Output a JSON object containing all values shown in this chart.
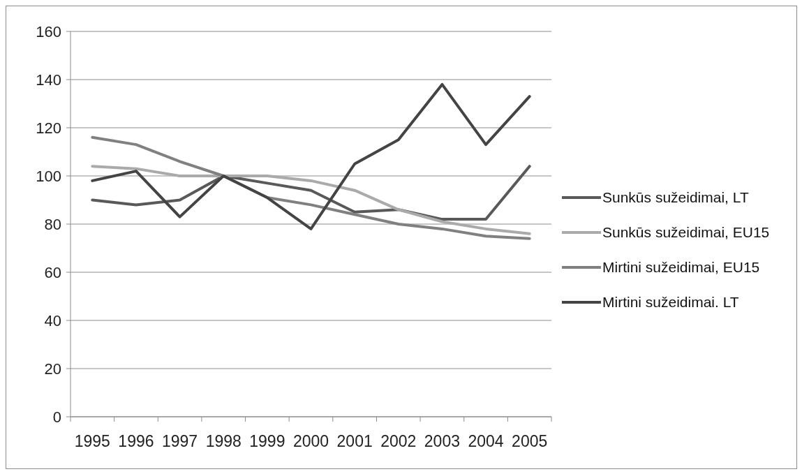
{
  "chart_data": {
    "type": "line",
    "categories": [
      "1995",
      "1996",
      "1997",
      "1998",
      "1999",
      "2000",
      "2001",
      "2002",
      "2003",
      "2004",
      "2005"
    ],
    "series": [
      {
        "name": "Sunkūs sužeidimai, LT",
        "color": "#595959",
        "values": [
          90,
          88,
          90,
          100,
          97,
          94,
          85,
          86,
          82,
          82,
          104
        ]
      },
      {
        "name": "Sunkūs sužeidimai, EU15",
        "color": "#aaaaaa",
        "values": [
          104,
          103,
          100,
          100,
          100,
          98,
          94,
          86,
          81,
          78,
          76
        ]
      },
      {
        "name": "Mirtini sužeidimai, EU15",
        "color": "#808080",
        "values": [
          116,
          113,
          106,
          100,
          91,
          88,
          84,
          80,
          78,
          75,
          74
        ]
      },
      {
        "name": "Mirtini sužeidimai. LT",
        "color": "#444444",
        "values": [
          98,
          102,
          83,
          100,
          91,
          78,
          105,
          115,
          138,
          113,
          133
        ]
      }
    ],
    "ylim": [
      0,
      160
    ],
    "yticks": [
      0,
      20,
      40,
      60,
      80,
      100,
      120,
      140,
      160
    ],
    "grid": "y",
    "legend": "right",
    "marker": "none",
    "line_style": "solid"
  }
}
